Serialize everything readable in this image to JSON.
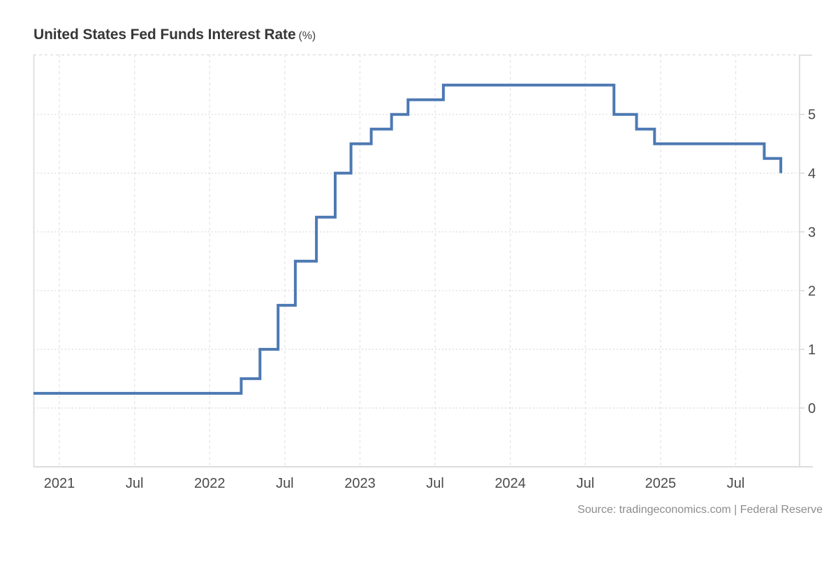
{
  "title": {
    "main": "United States Fed Funds Interest Rate",
    "unit": "(%)"
  },
  "source": "Source: tradingeconomics.com | Federal Reserve",
  "colors": {
    "line": "#4d79b3",
    "grid_dotted": "#e3e3e3",
    "grid_dashed": "#e6e6e6",
    "axis_border": "#e0e0e0",
    "bottom_axis": "#dcdcdc",
    "tick": "#d8d8d8",
    "axis_label": "#4a4a4a",
    "title_text": "#373737",
    "source_text": "#8c8c8c"
  },
  "chart_data": {
    "type": "line",
    "step": "after",
    "title": "United States Fed Funds Interest Rate (%)",
    "xlabel": "",
    "ylabel": "",
    "grid": true,
    "legend": false,
    "xlim": [
      2020.828,
      2025.925
    ],
    "ylim": [
      -1,
      6.02
    ],
    "x_ticks": [
      {
        "t": 2021.0,
        "label": "2021"
      },
      {
        "t": 2021.5,
        "label": "Jul"
      },
      {
        "t": 2022.0,
        "label": "2022"
      },
      {
        "t": 2022.5,
        "label": "Jul"
      },
      {
        "t": 2023.0,
        "label": "2023"
      },
      {
        "t": 2023.5,
        "label": "Jul"
      },
      {
        "t": 2024.0,
        "label": "2024"
      },
      {
        "t": 2024.5,
        "label": "Jul"
      },
      {
        "t": 2025.0,
        "label": "2025"
      },
      {
        "t": 2025.5,
        "label": "Jul"
      }
    ],
    "y_ticks": [
      {
        "v": 0,
        "label": "0"
      },
      {
        "v": 1,
        "label": "1"
      },
      {
        "v": 2,
        "label": "2"
      },
      {
        "v": 3,
        "label": "3"
      },
      {
        "v": 4,
        "label": "4"
      },
      {
        "v": 5,
        "label": "5"
      }
    ],
    "series": [
      {
        "name": "Fed Funds Interest Rate (%)",
        "color": "#4d79b3",
        "points": [
          {
            "t": 2020.828,
            "value": 0.25
          },
          {
            "t": 2022.21,
            "value": 0.5
          },
          {
            "t": 2022.335,
            "value": 1.0
          },
          {
            "t": 2022.455,
            "value": 1.75
          },
          {
            "t": 2022.57,
            "value": 2.5
          },
          {
            "t": 2022.71,
            "value": 3.25
          },
          {
            "t": 2022.835,
            "value": 4.0
          },
          {
            "t": 2022.94,
            "value": 4.5
          },
          {
            "t": 2023.075,
            "value": 4.75
          },
          {
            "t": 2023.21,
            "value": 5.0
          },
          {
            "t": 2023.32,
            "value": 5.25
          },
          {
            "t": 2023.555,
            "value": 5.5
          },
          {
            "t": 2024.69,
            "value": 5.0
          },
          {
            "t": 2024.84,
            "value": 4.75
          },
          {
            "t": 2024.96,
            "value": 4.5
          },
          {
            "t": 2025.69,
            "value": 4.25
          },
          {
            "t": 2025.8,
            "value": 4.0
          }
        ]
      }
    ]
  }
}
